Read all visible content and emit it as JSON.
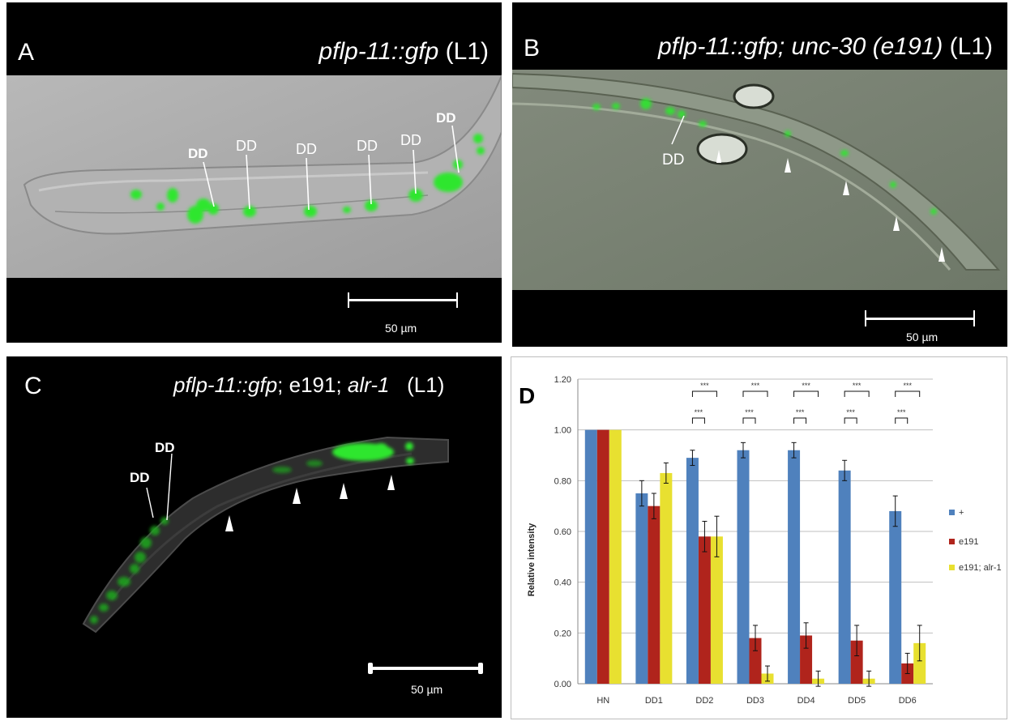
{
  "panel_a": {
    "letter": "A",
    "title_italic": "pflp-11::gfp",
    "title_rest": " (L1)",
    "dd_label": "DD",
    "scale_label": "50 µm"
  },
  "panel_b": {
    "letter": "B",
    "title_italic": "pflp-11::gfp; unc-30 (e191)",
    "title_rest": " (L1)",
    "dd_label": "DD",
    "scale_label": "50 µm"
  },
  "panel_c": {
    "letter": "C",
    "title_italic1": "pflp-11::gfp",
    "title_mid": "; e191; ",
    "title_italic2": "alr-1",
    "title_rest": "   (L1)",
    "dd_label": "DD",
    "scale_label": "50 µm"
  },
  "colors": {
    "gfp_green": "#2ee62e",
    "plus_series": "#4f81bd",
    "e191_series": "#b0241c",
    "alr_series": "#e8e030"
  },
  "chart_data": {
    "type": "bar",
    "panel_letter": "D",
    "categories": [
      "HN",
      "DD1",
      "DD2",
      "DD3",
      "DD4",
      "DD5",
      "DD6"
    ],
    "series": [
      {
        "name": "+",
        "values": [
          1.0,
          0.75,
          0.89,
          0.92,
          0.92,
          0.84,
          0.68
        ],
        "errors": [
          0,
          0.05,
          0.03,
          0.03,
          0.03,
          0.04,
          0.06
        ]
      },
      {
        "name": "e191",
        "values": [
          1.0,
          0.7,
          0.58,
          0.18,
          0.19,
          0.17,
          0.08
        ],
        "errors": [
          0,
          0.05,
          0.06,
          0.05,
          0.05,
          0.06,
          0.04
        ]
      },
      {
        "name": "e191; alr-1",
        "values": [
          1.0,
          0.83,
          0.58,
          0.04,
          0.02,
          0.02,
          0.16
        ],
        "errors": [
          0,
          0.04,
          0.08,
          0.03,
          0.03,
          0.03,
          0.07
        ]
      }
    ],
    "ylabel": "Relative intensity",
    "ylim": [
      0,
      1.2
    ],
    "yticks": [
      "0.00",
      "0.20",
      "0.40",
      "0.60",
      "0.80",
      "1.00",
      "1.20"
    ],
    "significance": [
      {
        "category": "DD2",
        "upper": "***",
        "lower": "***"
      },
      {
        "category": "DD3",
        "upper": "***",
        "lower": "***"
      },
      {
        "category": "DD4",
        "upper": "***",
        "lower": "***"
      },
      {
        "category": "DD5",
        "upper": "***",
        "lower": "***"
      },
      {
        "category": "DD6",
        "upper": "***",
        "lower": "***"
      }
    ],
    "legend_position": "right"
  }
}
